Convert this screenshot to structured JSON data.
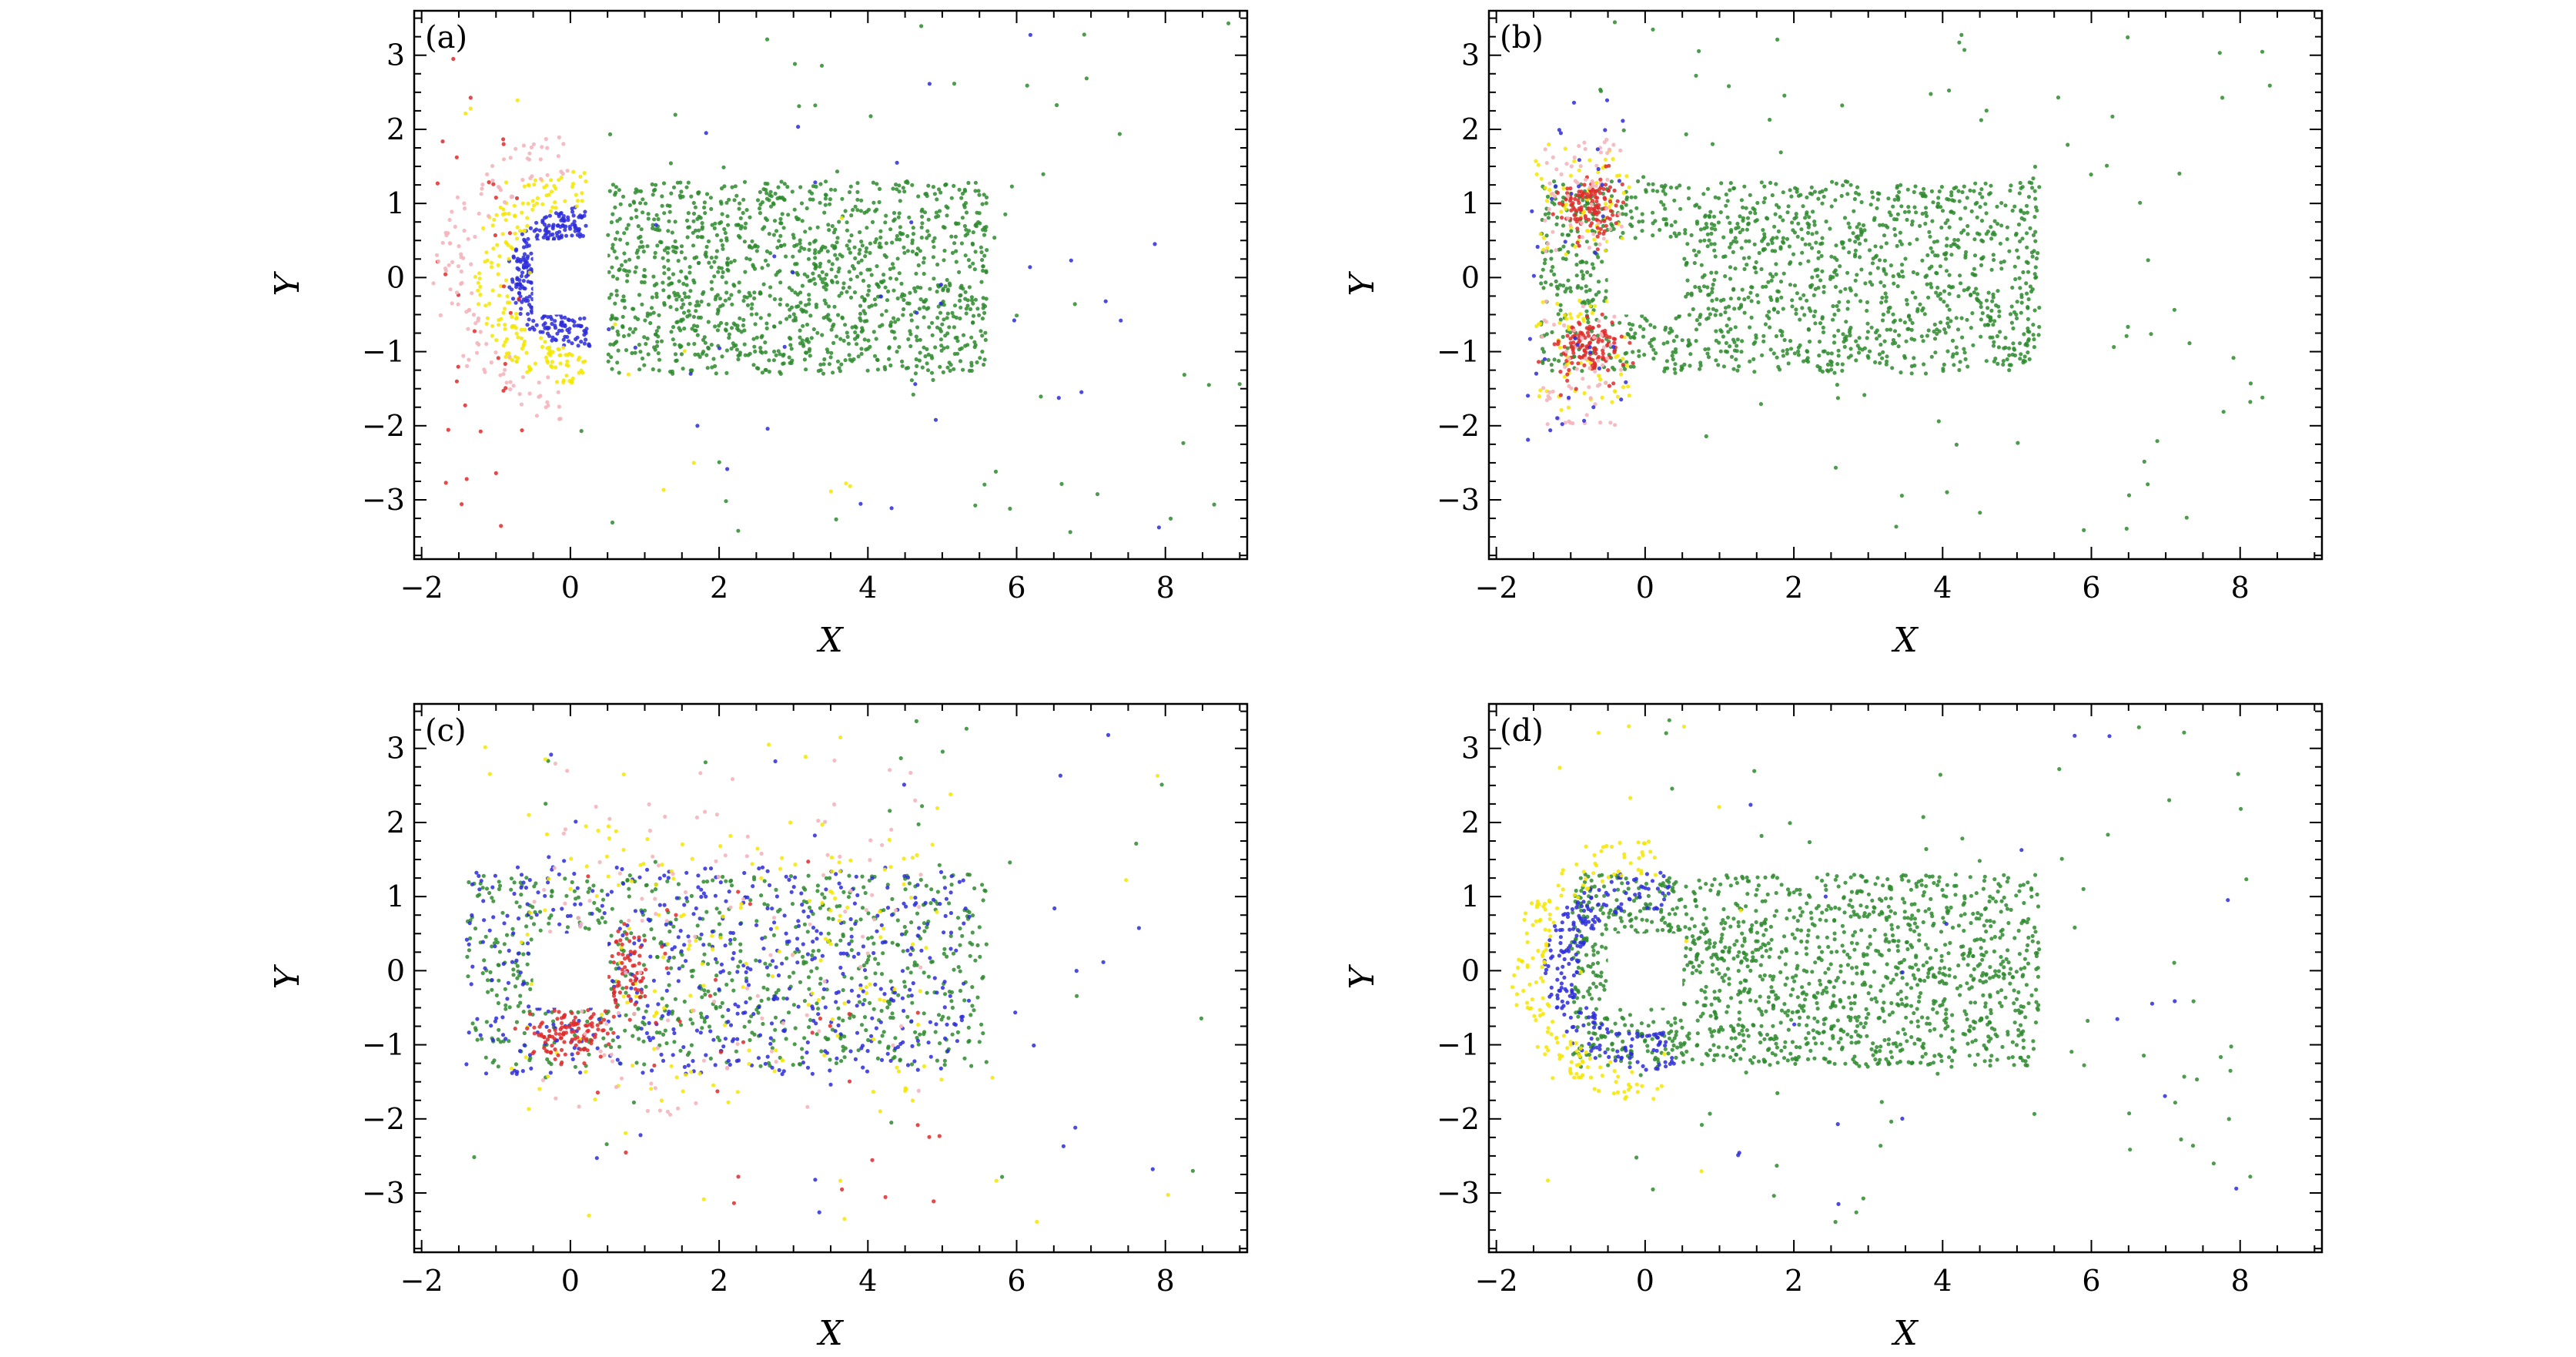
{
  "colors": {
    "green": "#2e8b2e",
    "blue": "#2b2bdb",
    "yellow": "#f5e600",
    "red": "#e02a2a",
    "pink": "#f4b5bd",
    "frame": "#000000"
  },
  "chart_data": [
    {
      "type": "scatter",
      "panel_label": "(a)",
      "xlabel": "X",
      "ylabel": "Y",
      "xlim": [
        -2.1,
        9.1
      ],
      "ylim": [
        -3.8,
        3.6
      ],
      "xticks": [
        -2,
        0,
        2,
        4,
        6,
        8
      ],
      "xtick_labels": [
        "−2",
        "0",
        "2",
        "4",
        "6",
        "8"
      ],
      "yticks": [
        -3,
        -2,
        -1,
        0,
        1,
        2,
        3
      ],
      "ytick_labels": [
        "−3",
        "−2",
        "−1",
        "0",
        "1",
        "2",
        "3"
      ],
      "obstacle": {
        "x": [
          -0.5,
          0.5
        ],
        "y": [
          -0.5,
          0.5
        ]
      },
      "series": [
        {
          "name": "green",
          "color_key": "green",
          "clusters": [
            {
              "n": 1300,
              "x": [
                0.5,
                5.6
              ],
              "y": [
                -1.3,
                1.3
              ]
            },
            {
              "n": 60,
              "x": [
                0.0,
                9.0
              ],
              "y": [
                -3.5,
                3.5
              ]
            }
          ]
        },
        {
          "name": "blue",
          "color_key": "blue",
          "clusters": [
            {
              "n": 260,
              "arc": true,
              "cx": 0.1,
              "cy": 0.0,
              "r": [
                0.55,
                0.95
              ],
              "theta": [
                80,
                280
              ]
            },
            {
              "n": 35,
              "x": [
                0.5,
                8.0
              ],
              "y": [
                -3.4,
                3.4
              ]
            }
          ]
        },
        {
          "name": "yellow",
          "color_key": "yellow",
          "clusters": [
            {
              "n": 190,
              "arc": true,
              "cx": 0.1,
              "cy": 0.0,
              "r": [
                0.95,
                1.45
              ],
              "theta": [
                85,
                275
              ]
            },
            {
              "n": 15,
              "x": [
                -1.5,
                4.0
              ],
              "y": [
                -3.3,
                3.3
              ]
            }
          ]
        },
        {
          "name": "red",
          "color_key": "red",
          "clusters": [
            {
              "n": 35,
              "x": [
                -1.9,
                -0.6
              ],
              "y": [
                -3.4,
                3.0
              ]
            }
          ]
        },
        {
          "name": "pink",
          "color_key": "pink",
          "clusters": [
            {
              "n": 120,
              "arc": true,
              "cx": 0.1,
              "cy": 0.0,
              "r": [
                1.4,
                1.95
              ],
              "theta": [
                95,
                265
              ]
            }
          ]
        }
      ]
    },
    {
      "type": "scatter",
      "panel_label": "(b)",
      "xlabel": "X",
      "ylabel": "Y",
      "xlim": [
        -2.1,
        9.1
      ],
      "ylim": [
        -3.8,
        3.6
      ],
      "xticks": [
        -2,
        0,
        2,
        4,
        6,
        8
      ],
      "xtick_labels": [
        "−2",
        "0",
        "2",
        "4",
        "6",
        "8"
      ],
      "yticks": [
        -3,
        -2,
        -1,
        0,
        1,
        2,
        3
      ],
      "ytick_labels": [
        "−3",
        "−2",
        "−1",
        "0",
        "1",
        "2",
        "3"
      ],
      "obstacle": {
        "x": [
          -0.5,
          0.5
        ],
        "y": [
          -0.5,
          0.5
        ]
      },
      "series": [
        {
          "name": "green",
          "color_key": "green",
          "clusters": [
            {
              "n": 1400,
              "x": [
                -1.4,
                5.3
              ],
              "y": [
                -1.3,
                1.3
              ]
            },
            {
              "n": 90,
              "x": [
                -1.0,
                8.4
              ],
              "y": [
                -3.5,
                3.5
              ]
            }
          ]
        },
        {
          "name": "yellow",
          "color_key": "yellow",
          "clusters": [
            {
              "n": 60,
              "x": [
                -1.5,
                -0.2
              ],
              "y": [
                0.3,
                1.8
              ]
            },
            {
              "n": 60,
              "x": [
                -1.5,
                -0.2
              ],
              "y": [
                -1.8,
                -0.3
              ]
            }
          ]
        },
        {
          "name": "red",
          "color_key": "red",
          "clusters": [
            {
              "n": 120,
              "blob": true,
              "cx": -0.75,
              "cy": 0.95,
              "rx": 0.42,
              "ry": 0.42
            },
            {
              "n": 120,
              "blob": true,
              "cx": -0.75,
              "cy": -0.95,
              "rx": 0.42,
              "ry": 0.42
            }
          ]
        },
        {
          "name": "pink",
          "color_key": "pink",
          "clusters": [
            {
              "n": 55,
              "x": [
                -1.4,
                -0.3
              ],
              "y": [
                0.3,
                1.9
              ]
            },
            {
              "n": 55,
              "x": [
                -1.4,
                -0.3
              ],
              "y": [
                -2.0,
                -0.3
              ]
            }
          ]
        },
        {
          "name": "blue",
          "color_key": "blue",
          "clusters": [
            {
              "n": 40,
              "x": [
                -1.6,
                -0.2
              ],
              "y": [
                -2.2,
                2.4
              ]
            }
          ]
        }
      ]
    },
    {
      "type": "scatter",
      "panel_label": "(c)",
      "xlabel": "X",
      "ylabel": "Y",
      "xlim": [
        -2.1,
        9.1
      ],
      "ylim": [
        -3.8,
        3.6
      ],
      "xticks": [
        -2,
        0,
        2,
        4,
        6,
        8
      ],
      "xtick_labels": [
        "−2",
        "0",
        "2",
        "4",
        "6",
        "8"
      ],
      "yticks": [
        -3,
        -2,
        -1,
        0,
        1,
        2,
        3
      ],
      "ytick_labels": [
        "−3",
        "−2",
        "−1",
        "0",
        "1",
        "2",
        "3"
      ],
      "obstacle": {
        "x": [
          -0.5,
          0.5
        ],
        "y": [
          -0.5,
          0.5
        ]
      },
      "series": [
        {
          "name": "green",
          "color_key": "green",
          "clusters": [
            {
              "n": 700,
              "x": [
                -1.4,
                5.6
              ],
              "y": [
                -1.3,
                1.3
              ]
            },
            {
              "n": 40,
              "x": [
                -1.5,
                8.5
              ],
              "y": [
                -3.4,
                3.4
              ]
            }
          ]
        },
        {
          "name": "blue",
          "color_key": "blue",
          "clusters": [
            {
              "n": 520,
              "x": [
                -1.4,
                5.4
              ],
              "y": [
                -1.4,
                1.4
              ]
            },
            {
              "n": 30,
              "x": [
                -1.0,
                8.3
              ],
              "y": [
                -3.4,
                3.4
              ]
            }
          ]
        },
        {
          "name": "yellow",
          "color_key": "yellow",
          "clusters": [
            {
              "n": 160,
              "x": [
                -0.8,
                5.0
              ],
              "y": [
                -1.9,
                2.0
              ]
            },
            {
              "n": 30,
              "x": [
                -1.2,
                8.2
              ],
              "y": [
                -3.4,
                3.4
              ]
            }
          ]
        },
        {
          "name": "red",
          "color_key": "red",
          "clusters": [
            {
              "n": 110,
              "blob": true,
              "cx": -0.05,
              "cy": -0.85,
              "rx": 0.5,
              "ry": 0.38
            },
            {
              "n": 70,
              "blob": true,
              "cx": 0.75,
              "cy": 0.0,
              "rx": 0.3,
              "ry": 0.55
            },
            {
              "n": 35,
              "x": [
                0.0,
                5.0
              ],
              "y": [
                -3.3,
                1.5
              ]
            }
          ]
        },
        {
          "name": "pink",
          "color_key": "pink",
          "clusters": [
            {
              "n": 120,
              "x": [
                -0.5,
                4.8
              ],
              "y": [
                -2.0,
                2.9
              ]
            }
          ]
        }
      ]
    },
    {
      "type": "scatter",
      "panel_label": "(d)",
      "xlabel": "X",
      "ylabel": "Y",
      "xlim": [
        -2.1,
        9.1
      ],
      "ylim": [
        -3.8,
        3.6
      ],
      "xticks": [
        -2,
        0,
        2,
        4,
        6,
        8
      ],
      "xtick_labels": [
        "−2",
        "0",
        "2",
        "4",
        "6",
        "8"
      ],
      "yticks": [
        -3,
        -2,
        -1,
        0,
        1,
        2,
        3
      ],
      "ytick_labels": [
        "−3",
        "−2",
        "−1",
        "0",
        "1",
        "2",
        "3"
      ],
      "obstacle": {
        "x": [
          -0.5,
          0.5
        ],
        "y": [
          -0.5,
          0.5
        ]
      },
      "series": [
        {
          "name": "green",
          "color_key": "green",
          "clusters": [
            {
              "n": 1450,
              "x": [
                -1.0,
                5.3
              ],
              "y": [
                -1.3,
                1.3
              ]
            },
            {
              "n": 80,
              "x": [
                -0.5,
                8.4
              ],
              "y": [
                -3.4,
                3.4
              ]
            }
          ]
        },
        {
          "name": "blue",
          "color_key": "blue",
          "clusters": [
            {
              "n": 240,
              "arc": true,
              "cx": -0.05,
              "cy": 0.0,
              "r": [
                0.85,
                1.35
              ],
              "theta": [
                70,
                290
              ]
            },
            {
              "n": 20,
              "x": [
                -0.5,
                8.0
              ],
              "y": [
                -3.4,
                3.4
              ]
            }
          ]
        },
        {
          "name": "yellow",
          "color_key": "yellow",
          "clusters": [
            {
              "n": 170,
              "arc": true,
              "cx": -0.05,
              "cy": 0.0,
              "r": [
                1.3,
                1.75
              ],
              "theta": [
                80,
                280
              ]
            },
            {
              "n": 15,
              "x": [
                -1.5,
                1.5
              ],
              "y": [
                -3.3,
                3.3
              ]
            }
          ]
        }
      ]
    }
  ]
}
